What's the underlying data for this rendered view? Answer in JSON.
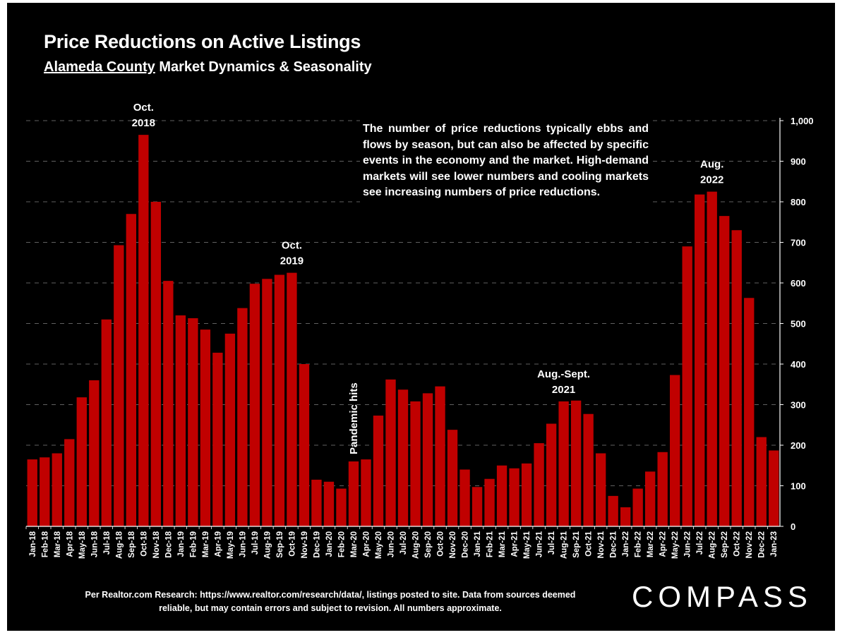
{
  "title": "Price Reductions on Active Listings",
  "subtitle_underlined": "Alameda County",
  "subtitle_rest": " Market Dynamics & Seasonality",
  "note": "The number of price reductions typically ebbs and flows by season, but can also be affected by specific events in the economy and the market. High-demand markets will see lower numbers and cooling markets see increasing numbers of price reductions.",
  "source": "Per Realtor.com Research:  https://www.realtor.com/research/data/, listings posted to site. Data from sources deemed reliable, but may contain errors and subject to revision. All numbers approximate.",
  "brand": "COMPASS",
  "colors": {
    "background": "#000000",
    "bar": "#c00000",
    "text": "#ffffff",
    "grid": "#808080"
  },
  "chart_data": {
    "type": "bar",
    "categories": [
      "Jan-18",
      "Feb-18",
      "Mar-18",
      "Apr-18",
      "May-18",
      "Jun-18",
      "Jul-18",
      "Aug-18",
      "Sep-18",
      "Oct-18",
      "Nov-18",
      "Dec-18",
      "Jan-19",
      "Feb-19",
      "Mar-19",
      "Apr-19",
      "May-19",
      "Jun-19",
      "Jul-19",
      "Aug-19",
      "Sep-19",
      "Oct-19",
      "Nov-19",
      "Dec-19",
      "Jan-20",
      "Feb-20",
      "Mar-20",
      "Apr-20",
      "May-20",
      "Jun-20",
      "Jul-20",
      "Aug-20",
      "Sep-20",
      "Oct-20",
      "Nov-20",
      "Dec-20",
      "Jan-21",
      "Feb-21",
      "Mar-21",
      "Apr-21",
      "May-21",
      "Jun-21",
      "Jul-21",
      "Aug-21",
      "Sep-21",
      "Oct-21",
      "Nov-21",
      "Dec-21",
      "Jan-22",
      "Feb-22",
      "Mar-22",
      "Apr-22",
      "May-22",
      "Jun-22",
      "Jul-22",
      "Aug-22",
      "Sep-22",
      "Oct-22",
      "Nov-22",
      "Dec-22",
      "Jan-23"
    ],
    "values": [
      165,
      170,
      180,
      215,
      318,
      360,
      510,
      693,
      770,
      965,
      800,
      605,
      520,
      513,
      485,
      428,
      475,
      538,
      598,
      610,
      620,
      625,
      400,
      115,
      110,
      93,
      160,
      165,
      273,
      362,
      337,
      308,
      328,
      345,
      238,
      140,
      97,
      117,
      150,
      143,
      155,
      205,
      253,
      308,
      310,
      277,
      180,
      75,
      47,
      93,
      135,
      183,
      373,
      690,
      818,
      825,
      765,
      730,
      563,
      220,
      187
    ],
    "yticks": [
      "0",
      "100",
      "200",
      "300",
      "400",
      "500",
      "600",
      "700",
      "800",
      "900",
      "1,000"
    ],
    "ylim": [
      0,
      1000
    ],
    "y_axis_side": "right",
    "grid": true,
    "annotations": [
      {
        "lines": [
          "Oct.",
          "2018"
        ],
        "category": "Oct-18"
      },
      {
        "lines": [
          "Oct.",
          "2019"
        ],
        "category": "Oct-19"
      },
      {
        "lines": [
          "Aug.-Sept.",
          "2021"
        ],
        "category": "Aug-21"
      },
      {
        "lines": [
          "Aug.",
          "2022"
        ],
        "category": "Aug-22"
      },
      {
        "lines": [
          "Pandemic hits"
        ],
        "category": "Mar-20",
        "rotated": true
      }
    ]
  }
}
